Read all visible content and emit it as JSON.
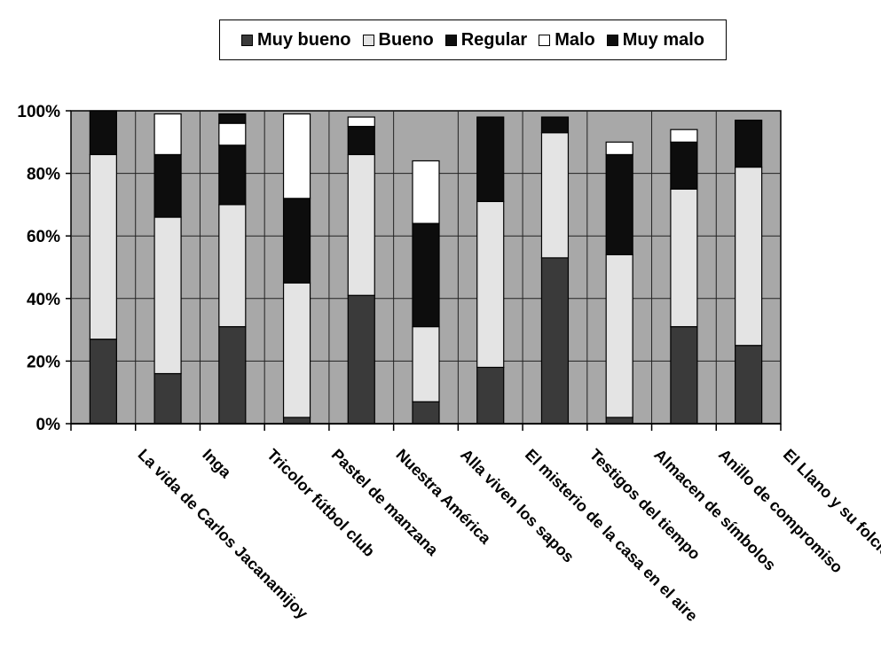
{
  "chart_data": {
    "type": "bar",
    "stacked": true,
    "percent": true,
    "title": "",
    "xlabel": "",
    "ylabel": "",
    "ylim": [
      0,
      100
    ],
    "yticks": [
      "0%",
      "20%",
      "40%",
      "60%",
      "80%",
      "100%"
    ],
    "legend_position": "top",
    "grid": true,
    "plot_background": "#a8a8a8",
    "categories": [
      "La vida de Carlos Jacanamijoy",
      "Inga",
      "Tricolor fútbol club",
      "Pastel de manzana",
      "Nuestra América",
      "Alla viven los sapos",
      "El misterio de la casa en el aire",
      "Testigos del tiempo",
      "Almacen de símbolos",
      "Anillo de compromiso",
      "El Llano y su folclor"
    ],
    "series": [
      {
        "name": "Muy bueno",
        "color": "#3a3a3a",
        "values": [
          27,
          16,
          31,
          2,
          41,
          7,
          18,
          53,
          2,
          31,
          25
        ]
      },
      {
        "name": "Bueno",
        "color": "#e4e4e4",
        "values": [
          59,
          50,
          39,
          43,
          45,
          24,
          53,
          40,
          52,
          44,
          57
        ]
      },
      {
        "name": "Regular",
        "color": "#0d0d0d",
        "values": [
          14,
          20,
          19,
          27,
          9,
          33,
          27,
          5,
          32,
          15,
          15
        ]
      },
      {
        "name": "Malo",
        "color": "#ffffff",
        "values": [
          0,
          13,
          7,
          27,
          3,
          20,
          0,
          0,
          4,
          4,
          0
        ]
      },
      {
        "name": "Muy malo",
        "color": "#0d0d0d",
        "values": [
          0,
          0,
          3,
          0,
          0,
          0,
          0,
          0,
          0,
          0,
          0
        ]
      }
    ]
  }
}
